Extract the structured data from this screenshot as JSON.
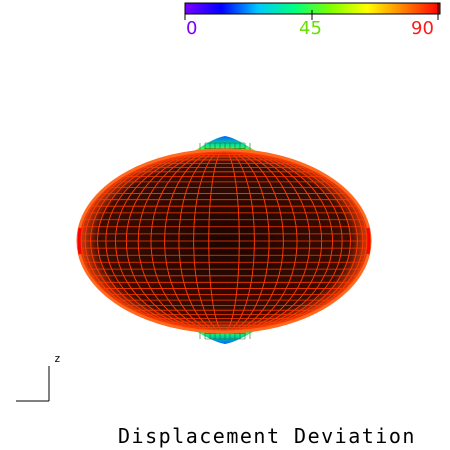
{
  "caption": "Displacement Deviation",
  "colorbar": {
    "min": 0,
    "mid": 45,
    "max": 90,
    "labels": [
      "0",
      "45",
      "90"
    ],
    "label_colors": [
      "#7a00ff",
      "#66e000",
      "#ff1a1a"
    ],
    "gradient_stops": [
      "#7a00ff",
      "#0000ff",
      "#00c8ff",
      "#00ff80",
      "#80ff00",
      "#ffff00",
      "#ff8000",
      "#ff0000"
    ]
  },
  "axis": {
    "label": "z"
  },
  "surface": {
    "body_color": "#ff5010",
    "mesh_color": "#ff3a00",
    "background_color": "#000000",
    "cap_colors": [
      "#ff6a00",
      "#ffd800",
      "#a0ff00",
      "#00e0a0",
      "#0060ff"
    ]
  }
}
